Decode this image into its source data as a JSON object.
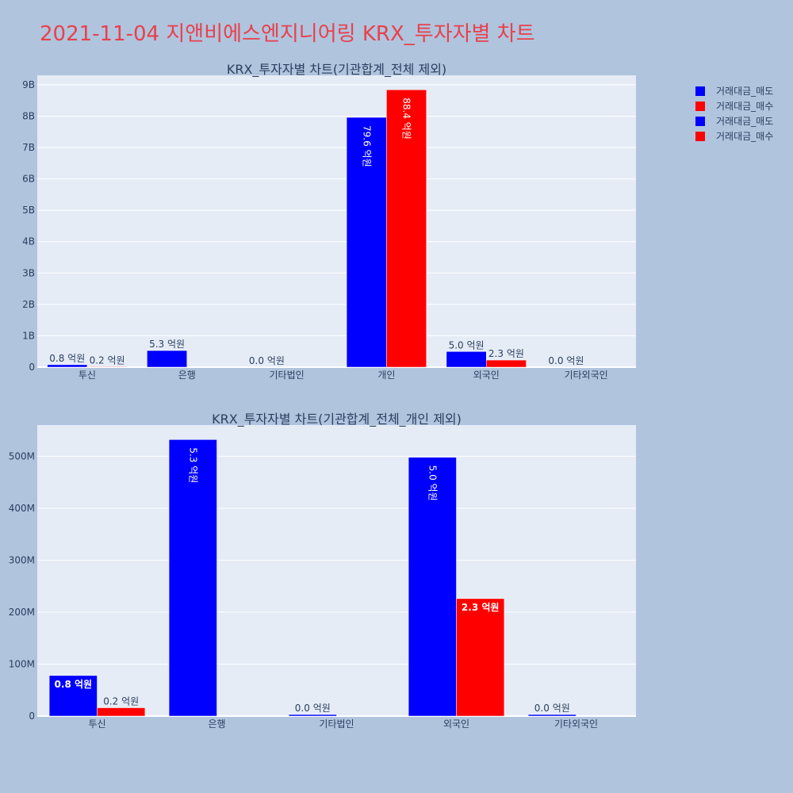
{
  "page_title": "2021-11-04 지앤비에스엔지니어링 KRX_투자자별 차트",
  "colors": {
    "sell": "#0000ff",
    "buy": "#ff0000",
    "plot_bg": "#e5ecf6",
    "page_bg": "#b0c4de",
    "title": "#e8414b"
  },
  "legend": [
    {
      "name": "거래대금_매도",
      "color": "#0000ff"
    },
    {
      "name": "거래대금_매수",
      "color": "#ff0000"
    },
    {
      "name": "거래대금_매도",
      "color": "#0000ff"
    },
    {
      "name": "거래대금_매수",
      "color": "#ff0000"
    }
  ],
  "chart_data": [
    {
      "type": "bar",
      "title": "KRX_투자자별 차트(기관합계_전체 제외)",
      "categories": [
        "투신",
        "은행",
        "기타법인",
        "개인",
        "외국인",
        "기타외국인"
      ],
      "ylim": [
        0,
        9300000000
      ],
      "yticks": [
        0,
        1000000000,
        2000000000,
        3000000000,
        4000000000,
        5000000000,
        6000000000,
        7000000000,
        8000000000,
        9000000000
      ],
      "ytick_labels": [
        "0",
        "1B",
        "2B",
        "3B",
        "4B",
        "5B",
        "6B",
        "7B",
        "8B",
        "9B"
      ],
      "grid": true,
      "series": [
        {
          "name": "거래대금_매도",
          "color": "#0000ff",
          "values": [
            78000000,
            530000000,
            3000000,
            7960000000,
            498000000,
            3000000
          ],
          "labels": [
            "0.8 억원",
            "5.3 억원",
            "0.0 억원",
            "79.6 억원",
            "5.0 억원",
            "0.0 억원"
          ]
        },
        {
          "name": "거래대금_매수",
          "color": "#ff0000",
          "values": [
            16000000,
            0,
            null,
            8840000000,
            226000000,
            null
          ],
          "labels": [
            "0.2 억원",
            "",
            "",
            "88.4 억원",
            "2.3 억원",
            ""
          ]
        }
      ]
    },
    {
      "type": "bar",
      "title": "KRX_투자자별 차트(기관합계_전체_개인 제외)",
      "categories": [
        "투신",
        "은행",
        "기타법인",
        "외국인",
        "기타외국인"
      ],
      "ylim": [
        0,
        560000000
      ],
      "yticks": [
        0,
        100000000,
        200000000,
        300000000,
        400000000,
        500000000
      ],
      "ytick_labels": [
        "0",
        "100M",
        "200M",
        "300M",
        "400M",
        "500M"
      ],
      "grid": true,
      "series": [
        {
          "name": "거래대금_매도",
          "color": "#0000ff",
          "values": [
            78000000,
            532000000,
            3000000,
            498000000,
            3000000
          ],
          "labels": [
            "0.8 억원",
            "5.3 억원",
            "0.0 억원",
            "5.0 억원",
            "0.0 억원"
          ]
        },
        {
          "name": "거래대금_매수",
          "color": "#ff0000",
          "values": [
            16000000,
            0,
            null,
            226000000,
            null
          ],
          "labels": [
            "0.2 억원",
            "",
            "",
            "2.3 억원",
            ""
          ]
        }
      ]
    }
  ]
}
